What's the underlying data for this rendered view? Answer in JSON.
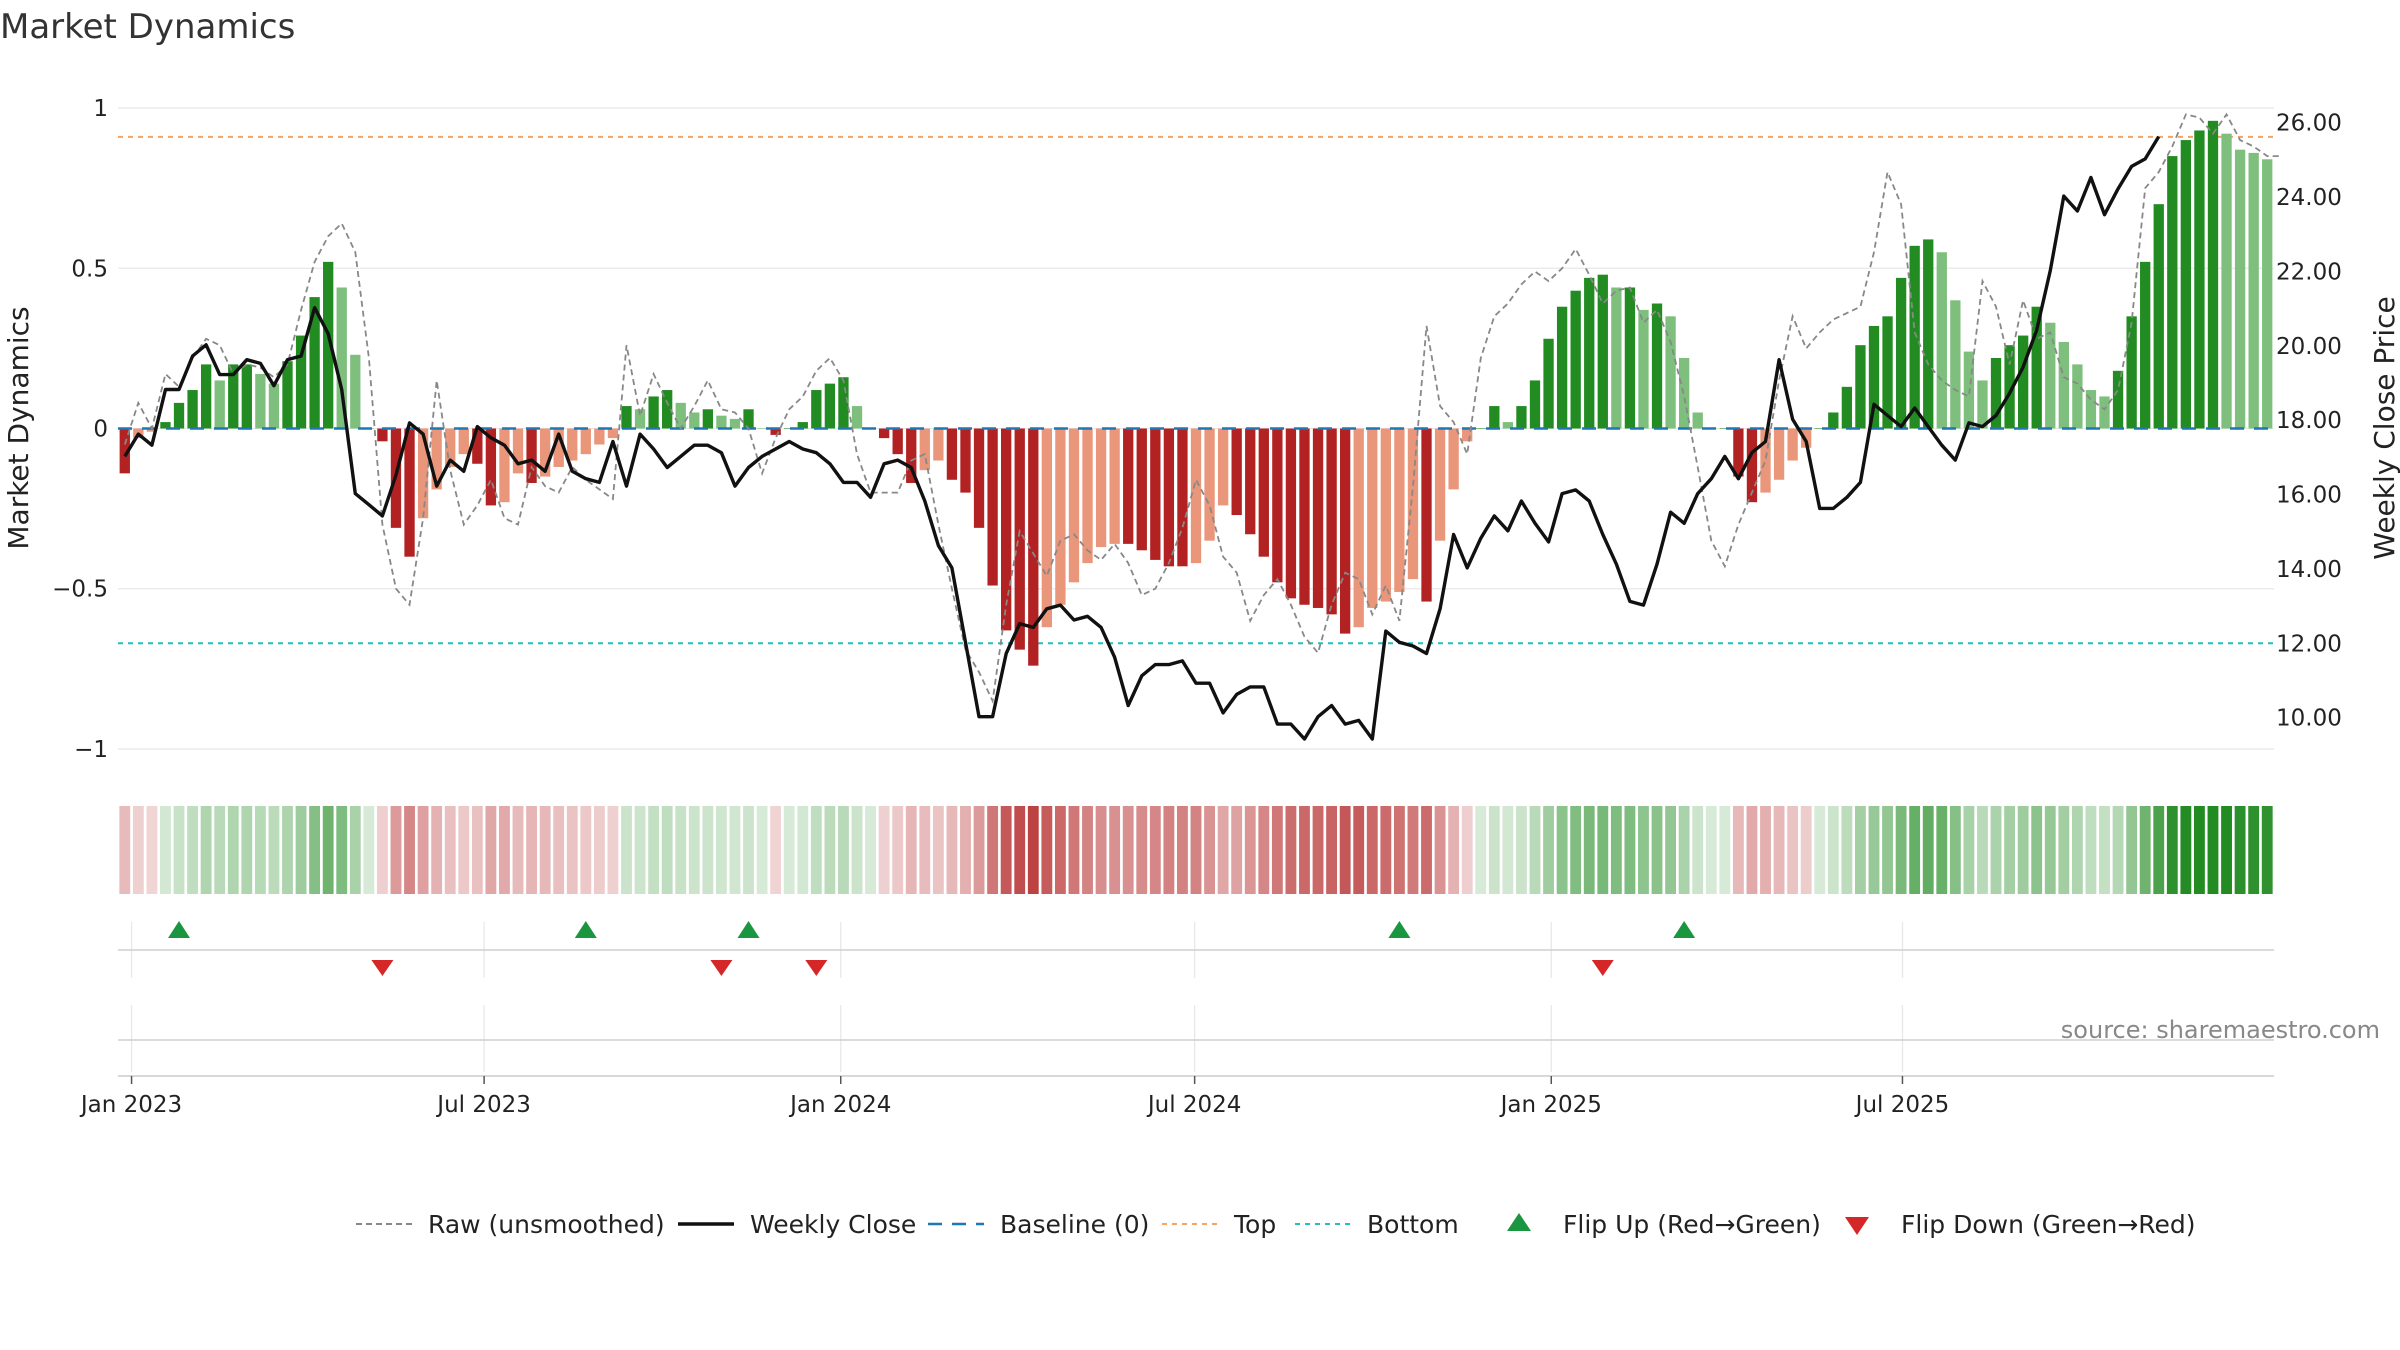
{
  "chart_data": {
    "type": "bar",
    "title": "Market Dynamics",
    "ylabel_left": "Market Dynamics",
    "ylabel_right": "Weekly Close Price",
    "source": "source: sharemaestro.com",
    "ylim_left": [
      -1.05,
      1.05
    ],
    "ylim_right": [
      8.7,
      26.8
    ],
    "left_ticks": [
      "1",
      "0.5",
      "0",
      "−0.5",
      "−1"
    ],
    "left_tick_values": [
      1,
      0.5,
      0,
      -0.5,
      -1
    ],
    "right_ticks": [
      "26.00",
      "24.00",
      "22.00",
      "20.00",
      "18.00",
      "16.00",
      "14.00",
      "12.00",
      "10.00"
    ],
    "right_tick_values": [
      26,
      24,
      22,
      20,
      18,
      16,
      14,
      12,
      10
    ],
    "x_ticks": [
      {
        "label": "Jan 2023",
        "week": 1
      },
      {
        "label": "Jul 2023",
        "week": 27
      },
      {
        "label": "Jan 2024",
        "week": 53.3
      },
      {
        "label": "Jul 2024",
        "week": 79.4
      },
      {
        "label": "Jan 2025",
        "week": 105.7
      },
      {
        "label": "Jul 2025",
        "week": 131.6
      }
    ],
    "top_threshold": 0.91,
    "bottom_threshold": -0.67,
    "baseline": 0,
    "grid": true,
    "legend_position": "bottom",
    "colors": {
      "strong_green": "#228b22",
      "light_green": "#7ebf7e",
      "strong_red": "#b22222",
      "light_red": "#e9967a",
      "close": "#111111",
      "raw": "#888888",
      "baseline": "#1f77b4",
      "top": "#f4a460",
      "bottom": "#20c0c0",
      "flip_up": "#1a9641",
      "flip_down": "#d62728"
    },
    "dynamics": [
      -0.14,
      -0.03,
      -0.01,
      0.02,
      0.08,
      0.12,
      0.2,
      0.15,
      0.2,
      0.2,
      0.17,
      0.14,
      0.21,
      0.29,
      0.41,
      0.52,
      0.44,
      0.23,
      0.0,
      -0.04,
      -0.31,
      -0.4,
      -0.28,
      -0.19,
      -0.12,
      -0.08,
      -0.11,
      -0.24,
      -0.23,
      -0.14,
      -0.17,
      -0.15,
      -0.12,
      -0.1,
      -0.08,
      -0.05,
      -0.03,
      0.07,
      0.06,
      0.1,
      0.12,
      0.08,
      0.05,
      0.06,
      0.04,
      0.03,
      0.06,
      0.0,
      -0.02,
      0.0,
      0.02,
      0.12,
      0.14,
      0.16,
      0.07,
      0.0,
      -0.03,
      -0.08,
      -0.17,
      -0.13,
      -0.1,
      -0.16,
      -0.2,
      -0.31,
      -0.49,
      -0.63,
      -0.69,
      -0.74,
      -0.62,
      -0.55,
      -0.48,
      -0.42,
      -0.37,
      -0.36,
      -0.36,
      -0.38,
      -0.41,
      -0.43,
      -0.43,
      -0.42,
      -0.35,
      -0.24,
      -0.27,
      -0.33,
      -0.4,
      -0.48,
      -0.53,
      -0.55,
      -0.56,
      -0.58,
      -0.64,
      -0.62,
      -0.56,
      -0.54,
      -0.51,
      -0.47,
      -0.54,
      -0.35,
      -0.19,
      -0.04,
      0.0,
      0.07,
      0.02,
      0.07,
      0.15,
      0.28,
      0.38,
      0.43,
      0.47,
      0.48,
      0.44,
      0.44,
      0.37,
      0.39,
      0.35,
      0.22,
      0.05,
      0.0,
      0.0,
      -0.15,
      -0.23,
      -0.2,
      -0.16,
      -0.1,
      -0.06,
      0.0,
      0.05,
      0.13,
      0.26,
      0.32,
      0.35,
      0.47,
      0.57,
      0.59,
      0.55,
      0.4,
      0.24,
      0.15,
      0.22,
      0.26,
      0.29,
      0.38,
      0.33,
      0.27,
      0.2,
      0.12,
      0.1,
      0.18,
      0.35,
      0.52,
      0.7,
      0.85,
      0.9,
      0.93,
      0.96,
      0.92,
      0.87,
      0.86,
      0.84
    ],
    "raw": [
      -0.05,
      0.08,
      0.0,
      0.17,
      0.13,
      0.22,
      0.28,
      0.26,
      0.17,
      0.2,
      0.19,
      0.16,
      0.2,
      0.37,
      0.52,
      0.6,
      0.64,
      0.55,
      0.22,
      -0.3,
      -0.5,
      -0.55,
      -0.28,
      0.15,
      -0.13,
      -0.3,
      -0.24,
      -0.16,
      -0.28,
      -0.3,
      -0.12,
      -0.18,
      -0.2,
      -0.12,
      -0.16,
      -0.19,
      -0.22,
      0.26,
      0.04,
      0.17,
      0.08,
      0.0,
      0.07,
      0.15,
      0.06,
      0.05,
      0.0,
      -0.14,
      -0.03,
      0.06,
      0.1,
      0.18,
      0.22,
      0.15,
      -0.08,
      -0.2,
      -0.2,
      -0.2,
      -0.1,
      -0.08,
      -0.3,
      -0.5,
      -0.69,
      -0.76,
      -0.85,
      -0.55,
      -0.32,
      -0.39,
      -0.46,
      -0.35,
      -0.33,
      -0.38,
      -0.41,
      -0.36,
      -0.42,
      -0.52,
      -0.5,
      -0.42,
      -0.31,
      -0.16,
      -0.24,
      -0.4,
      -0.45,
      -0.6,
      -0.52,
      -0.47,
      -0.55,
      -0.65,
      -0.7,
      -0.55,
      -0.45,
      -0.47,
      -0.58,
      -0.49,
      -0.6,
      -0.18,
      0.32,
      0.07,
      0.02,
      -0.08,
      0.22,
      0.35,
      0.39,
      0.45,
      0.49,
      0.46,
      0.5,
      0.56,
      0.48,
      0.39,
      0.43,
      0.44,
      0.33,
      0.37,
      0.27,
      0.1,
      -0.12,
      -0.35,
      -0.43,
      -0.3,
      -0.2,
      -0.1,
      0.15,
      0.35,
      0.25,
      0.3,
      0.34,
      0.36,
      0.38,
      0.55,
      0.8,
      0.7,
      0.3,
      0.2,
      0.15,
      0.12,
      0.1,
      0.46,
      0.38,
      0.2,
      0.4,
      0.28,
      0.3,
      0.16,
      0.14,
      0.09,
      0.06,
      0.12,
      0.33,
      0.75,
      0.8,
      0.88,
      0.98,
      0.97,
      0.92,
      0.98,
      0.9,
      0.88,
      0.85,
      0.85
    ],
    "close": [
      17.0,
      17.6,
      17.3,
      18.8,
      18.8,
      19.7,
      20.0,
      19.2,
      19.2,
      19.6,
      19.5,
      18.9,
      19.6,
      19.7,
      21.0,
      20.3,
      18.8,
      16.0,
      15.7,
      15.4,
      16.5,
      17.9,
      17.6,
      16.2,
      16.9,
      16.6,
      17.8,
      17.5,
      17.3,
      16.8,
      16.9,
      16.6,
      17.6,
      16.6,
      16.4,
      16.3,
      17.4,
      16.2,
      17.6,
      17.2,
      16.7,
      17.0,
      17.3,
      17.3,
      17.1,
      16.2,
      16.7,
      17.0,
      17.2,
      17.4,
      17.2,
      17.1,
      16.8,
      16.3,
      16.3,
      15.9,
      16.8,
      16.9,
      16.7,
      15.8,
      14.6,
      14.0,
      12.0,
      10.0,
      10.0,
      11.7,
      12.5,
      12.4,
      12.9,
      13.0,
      12.6,
      12.7,
      12.4,
      11.6,
      10.3,
      11.1,
      11.4,
      11.4,
      11.5,
      10.9,
      10.9,
      10.1,
      10.6,
      10.8,
      10.8,
      9.8,
      9.8,
      9.4,
      10.0,
      10.3,
      9.8,
      9.9,
      9.4,
      12.3,
      12.0,
      11.9,
      11.7,
      12.9,
      14.9,
      14.0,
      14.8,
      15.4,
      15.0,
      15.8,
      15.2,
      14.7,
      16.0,
      16.1,
      15.8,
      14.9,
      14.1,
      13.1,
      13.0,
      14.1,
      15.5,
      15.2,
      16.0,
      16.4,
      17.0,
      16.4,
      17.1,
      17.4,
      19.6,
      18.0,
      17.4,
      15.6,
      15.6,
      15.9,
      16.3,
      18.4,
      18.1,
      17.8,
      18.3,
      17.8,
      17.3,
      16.9,
      17.9,
      17.8,
      18.1,
      18.7,
      19.4,
      20.4,
      22.0,
      24.0,
      23.6,
      24.5,
      23.5,
      24.2,
      24.8,
      25.0,
      25.6
    ],
    "flip_up_weeks": [
      4,
      34,
      46,
      94,
      115
    ],
    "flip_down_weeks": [
      19,
      44,
      51,
      109
    ],
    "legend": [
      {
        "label": "Raw (unsmoothed)",
        "style": "raw"
      },
      {
        "label": "Weekly Close",
        "style": "close"
      },
      {
        "label": "Baseline (0)",
        "style": "baseline"
      },
      {
        "label": "Top",
        "style": "top"
      },
      {
        "label": "Bottom",
        "style": "bottom"
      },
      {
        "label": "Flip Up (Red→Green)",
        "style": "flip_up"
      },
      {
        "label": "Flip Down (Green→Red)",
        "style": "flip_down"
      }
    ]
  }
}
